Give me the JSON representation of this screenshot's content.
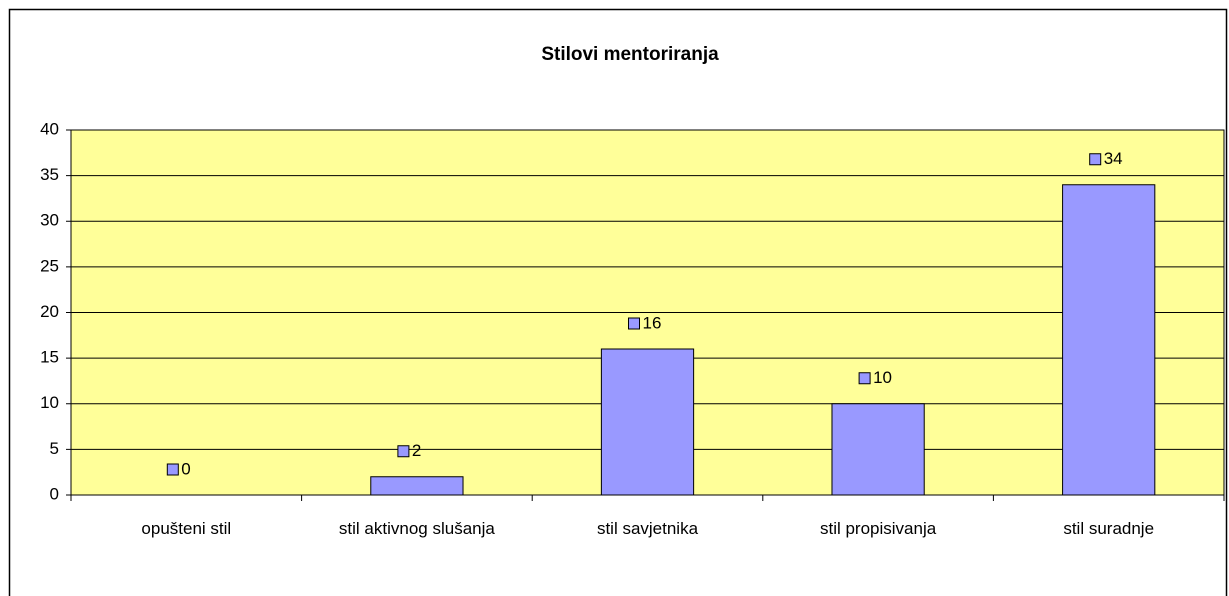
{
  "chart_data": {
    "type": "bar",
    "title": "Stilovi mentoriranja",
    "categories": [
      "opušteni stil",
      "stil aktivnog slušanja",
      "stil savjetnika",
      "stil propisivanja",
      "stil suradnje"
    ],
    "values": [
      0,
      2,
      16,
      10,
      34
    ],
    "color": "#9999ff",
    "background": "#ffff99",
    "ylim": [
      0,
      40
    ],
    "yticks": [
      0,
      5,
      10,
      15,
      20,
      25,
      30,
      35,
      40
    ],
    "grid": true
  }
}
